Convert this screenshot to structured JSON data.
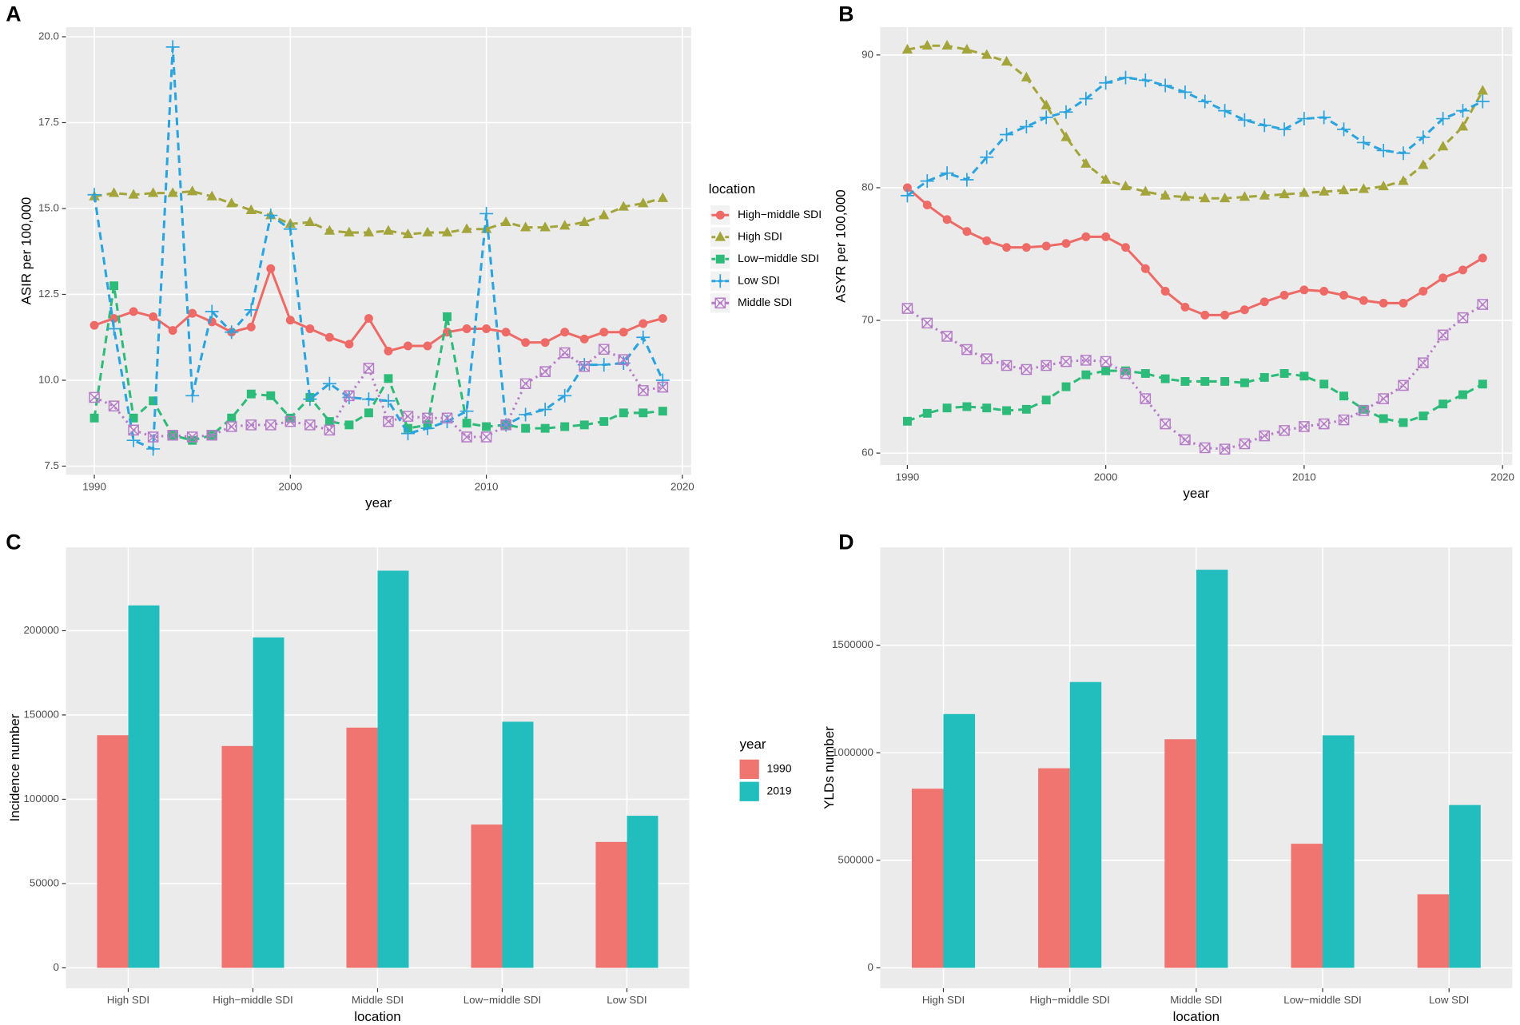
{
  "chart_data": [
    {
      "type": "line",
      "panel": "A",
      "x_label": "year",
      "y_label": "ASIR per 100,000",
      "legend_title": "location",
      "x": [
        1990,
        1991,
        1992,
        1993,
        1994,
        1995,
        1996,
        1997,
        1998,
        1999,
        2000,
        2001,
        2002,
        2003,
        2004,
        2005,
        2006,
        2007,
        2008,
        2009,
        2010,
        2011,
        2012,
        2013,
        2014,
        2015,
        2016,
        2017,
        2018,
        2019
      ],
      "xlim": [
        1988.55,
        2020.45
      ],
      "xticks": [
        1990,
        2000,
        2010,
        2020
      ],
      "ylim": [
        7.25,
        20.28
      ],
      "yticks": [
        {
          "value": 7.5,
          "label": "7.5"
        },
        {
          "value": 10,
          "label": "10.0"
        },
        {
          "value": 12.5,
          "label": "12.5"
        },
        {
          "value": 15,
          "label": "15.0"
        },
        {
          "value": 17.5,
          "label": "17.5"
        },
        {
          "value": 20,
          "label": "20.0"
        }
      ],
      "grid": true,
      "series": [
        {
          "name": "High−middle SDI",
          "color": "#EE6A66",
          "marker": "circle",
          "dash": "solid",
          "values": [
            11.6,
            11.8,
            12.0,
            11.85,
            11.45,
            11.95,
            11.7,
            11.4,
            11.55,
            13.25,
            11.75,
            11.5,
            11.25,
            11.05,
            11.8,
            10.85,
            11.0,
            11.0,
            11.4,
            11.5,
            11.5,
            11.4,
            11.1,
            11.1,
            11.4,
            11.2,
            11.4,
            11.4,
            11.65,
            11.8
          ]
        },
        {
          "name": "High SDI",
          "color": "#A3A53A",
          "marker": "triangle",
          "dash": "dashed",
          "values": [
            15.35,
            15.45,
            15.4,
            15.45,
            15.45,
            15.5,
            15.35,
            15.15,
            14.95,
            14.8,
            14.55,
            14.6,
            14.35,
            14.3,
            14.3,
            14.35,
            14.25,
            14.3,
            14.3,
            14.4,
            14.4,
            14.6,
            14.45,
            14.45,
            14.5,
            14.6,
            14.8,
            15.05,
            15.15,
            15.3
          ]
        },
        {
          "name": "Low−middle SDI",
          "color": "#2DBB7A",
          "marker": "square",
          "dash": "dashed",
          "values": [
            8.9,
            12.75,
            8.9,
            9.4,
            8.4,
            8.25,
            8.4,
            8.9,
            9.6,
            9.55,
            8.9,
            9.5,
            8.8,
            8.7,
            9.05,
            10.05,
            8.6,
            8.7,
            11.85,
            8.75,
            8.65,
            8.7,
            8.6,
            8.6,
            8.65,
            8.7,
            8.8,
            9.05,
            9.05,
            9.1
          ]
        },
        {
          "name": "Low SDI",
          "color": "#2AA4DF",
          "marker": "plus",
          "dash": "dashed",
          "values": [
            15.4,
            11.5,
            8.25,
            8.0,
            19.7,
            9.55,
            12.0,
            11.4,
            12.05,
            14.8,
            14.4,
            9.45,
            9.9,
            9.5,
            9.45,
            9.4,
            8.45,
            8.6,
            8.8,
            9.1,
            14.85,
            8.7,
            9.0,
            9.15,
            9.55,
            10.45,
            10.45,
            10.5,
            11.25,
            10.0
          ]
        },
        {
          "name": "Middle SDI",
          "color": "#B67CC8",
          "marker": "boxx",
          "dash": "dotted",
          "values": [
            9.5,
            9.25,
            8.55,
            8.35,
            8.4,
            8.35,
            8.4,
            8.65,
            8.7,
            8.7,
            8.8,
            8.7,
            8.55,
            9.55,
            10.35,
            8.8,
            8.95,
            8.9,
            8.9,
            8.35,
            8.35,
            8.7,
            9.9,
            10.25,
            10.8,
            10.4,
            10.9,
            10.6,
            9.7,
            9.8
          ]
        }
      ]
    },
    {
      "type": "line",
      "panel": "B",
      "x_label": "year",
      "y_label": "ASYR per 100,000",
      "x": [
        1990,
        1991,
        1992,
        1993,
        1994,
        1995,
        1996,
        1997,
        1998,
        1999,
        2000,
        2001,
        2002,
        2003,
        2004,
        2005,
        2006,
        2007,
        2008,
        2009,
        2010,
        2011,
        2012,
        2013,
        2014,
        2015,
        2016,
        2017,
        2018,
        2019
      ],
      "xlim": [
        1988.63,
        2020.49
      ],
      "xticks": [
        1990,
        2000,
        2010,
        2020
      ],
      "ylim": [
        59.1,
        92.1
      ],
      "yticks": [
        60,
        70,
        80,
        90
      ],
      "grid": true,
      "series": [
        {
          "name": "High−middle SDI",
          "color": "#EE6A66",
          "marker": "circle",
          "dash": "solid",
          "values": [
            80.0,
            78.7,
            77.6,
            76.7,
            76.0,
            75.5,
            75.5,
            75.6,
            75.8,
            76.3,
            76.3,
            75.5,
            73.9,
            72.2,
            71.0,
            70.4,
            70.4,
            70.8,
            71.4,
            71.9,
            72.3,
            72.2,
            71.9,
            71.5,
            71.3,
            71.3,
            72.2,
            73.2,
            73.8,
            74.7
          ]
        },
        {
          "name": "High SDI",
          "color": "#A3A53A",
          "marker": "triangle",
          "dash": "dashed",
          "values": [
            90.4,
            90.7,
            90.7,
            90.4,
            90.0,
            89.5,
            88.3,
            86.2,
            83.8,
            81.8,
            80.6,
            80.1,
            79.7,
            79.4,
            79.3,
            79.2,
            79.2,
            79.3,
            79.4,
            79.5,
            79.6,
            79.7,
            79.8,
            79.9,
            80.1,
            80.5,
            81.7,
            83.1,
            84.6,
            87.3
          ]
        },
        {
          "name": "Low−middle SDI",
          "color": "#2DBB7A",
          "marker": "square",
          "dash": "dashed",
          "values": [
            62.4,
            63.0,
            63.4,
            63.5,
            63.4,
            63.2,
            63.3,
            64.0,
            65.0,
            65.9,
            66.2,
            66.2,
            66.0,
            65.6,
            65.4,
            65.4,
            65.4,
            65.3,
            65.7,
            66.0,
            65.8,
            65.2,
            64.3,
            63.3,
            62.6,
            62.3,
            62.8,
            63.7,
            64.4,
            65.2
          ]
        },
        {
          "name": "Low SDI",
          "color": "#2AA4DF",
          "marker": "plus",
          "dash": "dashed",
          "values": [
            79.4,
            80.5,
            81.1,
            80.6,
            82.3,
            84.0,
            84.6,
            85.3,
            85.7,
            86.7,
            87.9,
            88.3,
            88.1,
            87.7,
            87.2,
            86.5,
            85.8,
            85.1,
            84.7,
            84.4,
            85.2,
            85.3,
            84.4,
            83.4,
            82.8,
            82.6,
            83.8,
            85.2,
            85.8,
            86.5
          ]
        },
        {
          "name": "Middle SDI",
          "color": "#B67CC8",
          "marker": "boxx",
          "dash": "dotted",
          "values": [
            70.9,
            69.8,
            68.8,
            67.8,
            67.1,
            66.6,
            66.3,
            66.6,
            66.9,
            67.0,
            66.9,
            66.0,
            64.1,
            62.2,
            61.0,
            60.4,
            60.3,
            60.7,
            61.3,
            61.7,
            62.0,
            62.2,
            62.5,
            63.2,
            64.1,
            65.1,
            66.8,
            68.9,
            70.2,
            71.2
          ]
        }
      ]
    },
    {
      "type": "bar",
      "panel": "C",
      "x_label": "location",
      "y_label": "Incidence number",
      "legend_title": "year",
      "categories": [
        "High SDI",
        "High−middle SDI",
        "Middle SDI",
        "Low−middle SDI",
        "Low SDI"
      ],
      "ylim": [
        -12069,
        249425
      ],
      "yticks": [
        0,
        50000,
        100000,
        150000,
        200000
      ],
      "grid": true,
      "series": [
        {
          "name": "1990",
          "color": "#F07470",
          "values": [
            138000,
            131600,
            142500,
            85000,
            74700
          ]
        },
        {
          "name": "2019",
          "color": "#22BDBD",
          "values": [
            215000,
            196000,
            235600,
            146000,
            90200
          ]
        }
      ]
    },
    {
      "type": "bar",
      "panel": "D",
      "x_label": "location",
      "y_label": "YLDs number",
      "categories": [
        "High SDI",
        "High−middle SDI",
        "Middle SDI",
        "Low−middle SDI",
        "Low SDI"
      ],
      "ylim": [
        -94595,
        1954955
      ],
      "yticks": [
        0,
        500000,
        1000000,
        1500000
      ],
      "grid": true,
      "series": [
        {
          "name": "1990",
          "color": "#F07470",
          "values": [
            833000,
            928000,
            1063000,
            577000,
            342000
          ]
        },
        {
          "name": "2019",
          "color": "#22BDBD",
          "values": [
            1180000,
            1329000,
            1851000,
            1081000,
            757000
          ]
        }
      ]
    }
  ]
}
